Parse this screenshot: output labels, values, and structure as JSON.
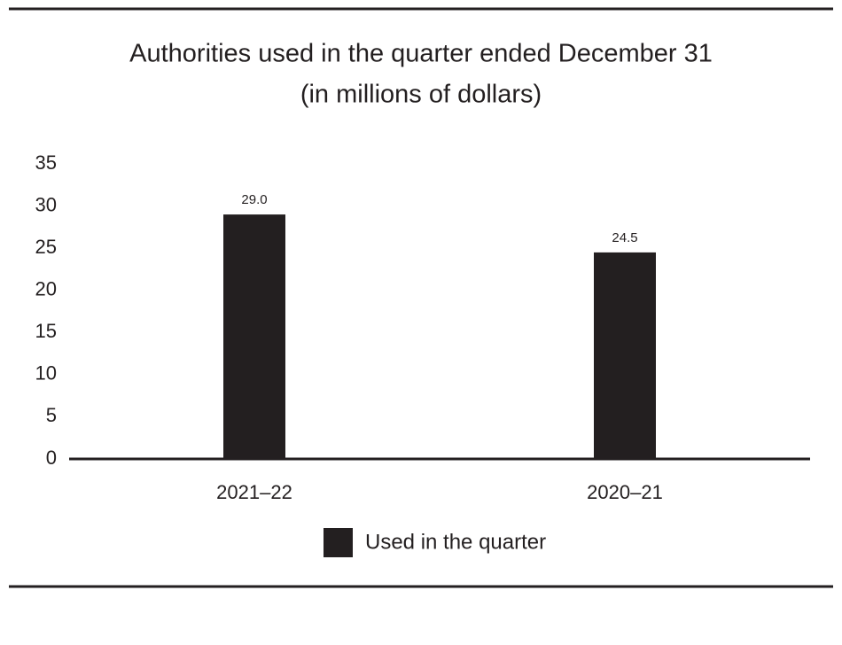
{
  "chart_data": {
    "type": "bar",
    "title": "Authorities used in the quarter ended December 31",
    "subtitle": "(in millions of dollars)",
    "categories": [
      "2021–22",
      "2020–21"
    ],
    "series": [
      {
        "name": "Used in the quarter",
        "color": "#231f20",
        "values": [
          29.0,
          24.5
        ],
        "value_labels": [
          "29.0",
          "24.5"
        ]
      }
    ],
    "ylim": [
      0,
      35
    ],
    "yticks": [
      0,
      5,
      10,
      15,
      20,
      25,
      30,
      35
    ],
    "grid": false,
    "legend": "bottom"
  }
}
